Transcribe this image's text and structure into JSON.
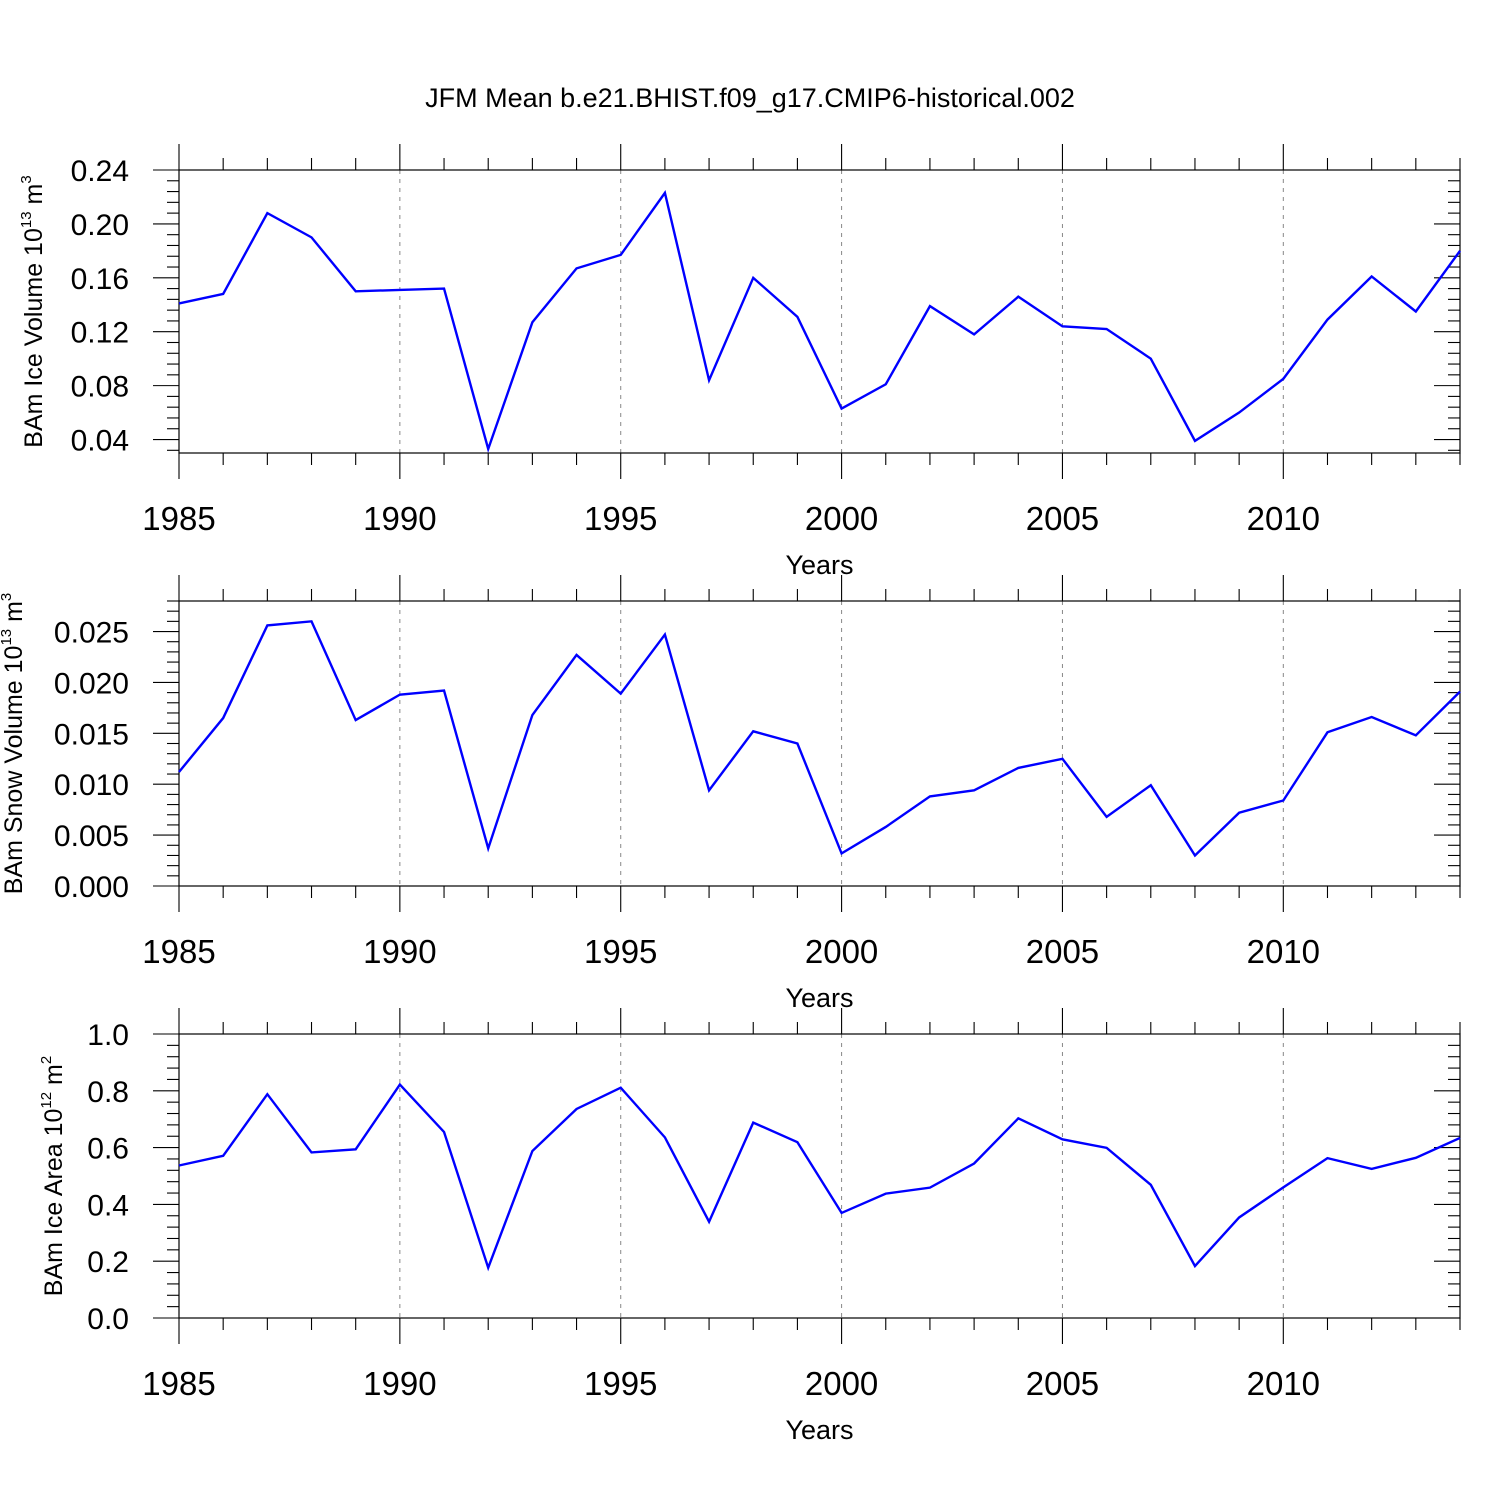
{
  "title": "JFM Mean b.e21.BHIST.f09_g17.CMIP6-historical.002",
  "chart_data": [
    {
      "type": "line",
      "title": "JFM Mean b.e21.BHIST.f09_g17.CMIP6-historical.002",
      "xlabel": "Years",
      "ylabel": {
        "main": "BAm Ice Volume 10",
        "exp": "13",
        "unit": "m",
        "unit_exp": "3"
      },
      "xlim": [
        1985,
        2014
      ],
      "ylim": [
        0.03,
        0.24
      ],
      "xticks": [
        1985,
        1990,
        1995,
        2000,
        2005,
        2010
      ],
      "xtick_labels": [
        "1985",
        "1990",
        "1995",
        "2000",
        "2005",
        "2010"
      ],
      "yticks": [
        0.04,
        0.08,
        0.12,
        0.16,
        0.2,
        0.24
      ],
      "ytick_labels": [
        "0.04",
        "0.08",
        "0.12",
        "0.16",
        "0.20",
        "0.24"
      ],
      "series": [
        {
          "name": "BAm Ice Volume",
          "color": "#0000ff",
          "x": [
            1985,
            1986,
            1987,
            1988,
            1989,
            1990,
            1991,
            1992,
            1993,
            1994,
            1995,
            1996,
            1997,
            1998,
            1999,
            2000,
            2001,
            2002,
            2003,
            2004,
            2005,
            2006,
            2007,
            2008,
            2009,
            2010,
            2011,
            2012,
            2013,
            2014
          ],
          "values": [
            0.141,
            0.148,
            0.208,
            0.19,
            0.15,
            0.151,
            0.152,
            0.033,
            0.127,
            0.167,
            0.177,
            0.223,
            0.084,
            0.16,
            0.131,
            0.063,
            0.081,
            0.139,
            0.118,
            0.146,
            0.124,
            0.122,
            0.1,
            0.039,
            0.06,
            0.085,
            0.129,
            0.161,
            0.135,
            0.18
          ]
        }
      ]
    },
    {
      "type": "line",
      "xlabel": "Years",
      "ylabel": {
        "main": "BAm Snow Volume 10",
        "exp": "13",
        "unit": "m",
        "unit_exp": "3"
      },
      "xlim": [
        1985,
        2014
      ],
      "ylim": [
        0.0,
        0.028
      ],
      "xticks": [
        1985,
        1990,
        1995,
        2000,
        2005,
        2010
      ],
      "xtick_labels": [
        "1985",
        "1990",
        "1995",
        "2000",
        "2005",
        "2010"
      ],
      "yticks": [
        0.0,
        0.005,
        0.01,
        0.015,
        0.02,
        0.025
      ],
      "ytick_labels": [
        "0.000",
        "0.005",
        "0.010",
        "0.015",
        "0.020",
        "0.025"
      ],
      "series": [
        {
          "name": "BAm Snow Volume",
          "color": "#0000ff",
          "x": [
            1985,
            1986,
            1987,
            1988,
            1989,
            1990,
            1991,
            1992,
            1993,
            1994,
            1995,
            1996,
            1997,
            1998,
            1999,
            2000,
            2001,
            2002,
            2003,
            2004,
            2005,
            2006,
            2007,
            2008,
            2009,
            2010,
            2011,
            2012,
            2013,
            2014
          ],
          "values": [
            0.0112,
            0.0165,
            0.0256,
            0.026,
            0.0163,
            0.0188,
            0.0192,
            0.0037,
            0.0168,
            0.0227,
            0.0189,
            0.0247,
            0.0094,
            0.0152,
            0.014,
            0.0032,
            0.0058,
            0.0088,
            0.0094,
            0.0116,
            0.0125,
            0.0068,
            0.0099,
            0.003,
            0.0072,
            0.0084,
            0.0151,
            0.0166,
            0.0148,
            0.0191
          ]
        }
      ]
    },
    {
      "type": "line",
      "xlabel": "Years",
      "ylabel": {
        "main": "BAm Ice Area 10",
        "exp": "12",
        "unit": "m",
        "unit_exp": "2"
      },
      "xlim": [
        1985,
        2014
      ],
      "ylim": [
        0.0,
        1.0
      ],
      "xticks": [
        1985,
        1990,
        1995,
        2000,
        2005,
        2010
      ],
      "xtick_labels": [
        "1985",
        "1990",
        "1995",
        "2000",
        "2005",
        "2010"
      ],
      "yticks": [
        0.0,
        0.2,
        0.4,
        0.6,
        0.8,
        1.0
      ],
      "ytick_labels": [
        "0.0",
        "0.2",
        "0.4",
        "0.6",
        "0.8",
        "1.0"
      ],
      "series": [
        {
          "name": "BAm Ice Area",
          "color": "#0000ff",
          "x": [
            1985,
            1986,
            1987,
            1988,
            1989,
            1990,
            1991,
            1992,
            1993,
            1994,
            1995,
            1996,
            1997,
            1998,
            1999,
            2000,
            2001,
            2002,
            2003,
            2004,
            2005,
            2006,
            2007,
            2008,
            2009,
            2010,
            2011,
            2012,
            2013,
            2014
          ],
          "values": [
            0.537,
            0.571,
            0.788,
            0.583,
            0.594,
            0.822,
            0.655,
            0.177,
            0.588,
            0.736,
            0.811,
            0.636,
            0.339,
            0.688,
            0.619,
            0.37,
            0.438,
            0.459,
            0.544,
            0.703,
            0.629,
            0.599,
            0.469,
            0.183,
            0.354,
            0.46,
            0.563,
            0.525,
            0.564,
            0.634
          ]
        }
      ]
    }
  ]
}
